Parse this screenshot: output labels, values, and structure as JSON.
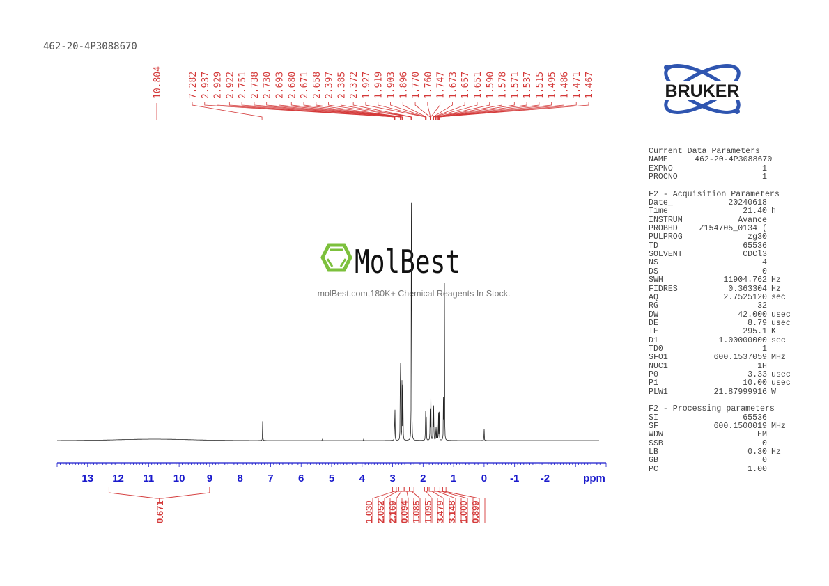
{
  "sample_title": "462-20-4P3088670",
  "logos": {
    "bruker": "BRUKER",
    "molbest": "MolBest",
    "molbest_tagline": "molBest.com,180K+ Chemical Reagents In Stock."
  },
  "colors": {
    "peak_labels": "#d43a3a",
    "axis_labels": "#1a1acc",
    "spectrum": "#222222",
    "bruker_blue": "#2f55b0",
    "molbest_green": "#7cc03c"
  },
  "parameters": {
    "current": {
      "heading": "Current Data Parameters",
      "rows": [
        [
          "NAME",
          "462-20-4P3088670",
          ""
        ],
        [
          "EXPNO",
          "1",
          ""
        ],
        [
          "PROCNO",
          "1",
          ""
        ]
      ]
    },
    "acquisition": {
      "heading": "F2 - Acquisition Parameters",
      "rows": [
        [
          "Date_",
          "20240618",
          ""
        ],
        [
          "Time",
          "21.40",
          "h"
        ],
        [
          "INSTRUM",
          "Avance",
          ""
        ],
        [
          "PROBHD",
          "Z154705_0134 (",
          ""
        ],
        [
          "PULPROG",
          "zg30",
          ""
        ],
        [
          "TD",
          "65536",
          ""
        ],
        [
          "SOLVENT",
          "CDCl3",
          ""
        ],
        [
          "NS",
          "4",
          ""
        ],
        [
          "DS",
          "0",
          ""
        ],
        [
          "SWH",
          "11904.762",
          "Hz"
        ],
        [
          "FIDRES",
          "0.363304",
          "Hz"
        ],
        [
          "AQ",
          "2.7525120",
          "sec"
        ],
        [
          "RG",
          "32",
          ""
        ],
        [
          "DW",
          "42.000",
          "usec"
        ],
        [
          "DE",
          "8.79",
          "usec"
        ],
        [
          "TE",
          "295.1",
          "K"
        ],
        [
          "D1",
          "1.00000000",
          "sec"
        ],
        [
          "TD0",
          "1",
          ""
        ],
        [
          "SFO1",
          "600.1537059",
          "MHz"
        ],
        [
          "NUC1",
          "1H",
          ""
        ],
        [
          "P0",
          "3.33",
          "usec"
        ],
        [
          "P1",
          "10.00",
          "usec"
        ],
        [
          "PLW1",
          "21.87999916",
          "W"
        ]
      ]
    },
    "processing": {
      "heading": "F2 - Processing parameters",
      "rows": [
        [
          "SI",
          "65536",
          ""
        ],
        [
          "SF",
          "600.1500019",
          "MHz"
        ],
        [
          "WDW",
          "EM",
          ""
        ],
        [
          "SSB",
          "0",
          ""
        ],
        [
          "LB",
          "0.30",
          "Hz"
        ],
        [
          "GB",
          "0",
          ""
        ],
        [
          "PC",
          "1.00",
          ""
        ]
      ]
    }
  },
  "chart_data": {
    "type": "line",
    "xlabel": "ppm",
    "xlim": [
      14,
      -4
    ],
    "x_reversed": true,
    "grid": false,
    "xticks": [
      "13",
      "12",
      "11",
      "10",
      "9",
      "8",
      "7",
      "6",
      "5",
      "4",
      "3",
      "2",
      "1",
      "0",
      "-1",
      "-2"
    ],
    "peak_labels": [
      "10.804",
      "7.282",
      "2.937",
      "2.929",
      "2.922",
      "2.751",
      "2.738",
      "2.730",
      "2.693",
      "2.680",
      "2.671",
      "2.658",
      "2.397",
      "2.385",
      "2.372",
      "1.927",
      "1.919",
      "1.903",
      "1.896",
      "1.770",
      "1.760",
      "1.747",
      "1.673",
      "1.657",
      "1.651",
      "1.590",
      "1.578",
      "1.571",
      "1.537",
      "1.515",
      "1.495",
      "1.486",
      "1.471",
      "1.467"
    ],
    "spectrum_peaks": [
      {
        "ppm": 7.26,
        "intensity": 0.094
      },
      {
        "ppm": 5.3,
        "intensity": 0.012
      },
      {
        "ppm": 3.95,
        "intensity": 0.006
      },
      {
        "ppm": 2.937,
        "intensity": 0.12
      },
      {
        "ppm": 2.922,
        "intensity": 0.13
      },
      {
        "ppm": 2.751,
        "intensity": 0.22
      },
      {
        "ppm": 2.738,
        "intensity": 0.32
      },
      {
        "ppm": 2.693,
        "intensity": 0.25
      },
      {
        "ppm": 2.671,
        "intensity": 0.23
      },
      {
        "ppm": 2.658,
        "intensity": 0.16
      },
      {
        "ppm": 2.385,
        "intensity": 1.0
      },
      {
        "ppm": 2.372,
        "intensity": 0.55
      },
      {
        "ppm": 1.919,
        "intensity": 0.18
      },
      {
        "ppm": 1.896,
        "intensity": 0.14
      },
      {
        "ppm": 1.77,
        "intensity": 0.17
      },
      {
        "ppm": 1.747,
        "intensity": 0.27
      },
      {
        "ppm": 1.673,
        "intensity": 0.22
      },
      {
        "ppm": 1.651,
        "intensity": 0.2
      },
      {
        "ppm": 1.578,
        "intensity": 0.12
      },
      {
        "ppm": 1.537,
        "intensity": 0.11
      },
      {
        "ppm": 1.495,
        "intensity": 0.13
      },
      {
        "ppm": 1.471,
        "intensity": 0.12
      },
      {
        "ppm": 1.33,
        "intensity": 0.34
      },
      {
        "ppm": 1.3,
        "intensity": 0.69
      },
      {
        "ppm": 0.0,
        "intensity": 0.07
      }
    ],
    "integrals": [
      {
        "from": 12.3,
        "to": 9.0,
        "value": "0.671"
      },
      {
        "from": 3.0,
        "to": 2.88,
        "value": "1.030"
      },
      {
        "from": 2.88,
        "to": 2.8,
        "value": "2.052"
      },
      {
        "from": 2.8,
        "to": 2.62,
        "value": "2.169"
      },
      {
        "from": 2.62,
        "to": 2.45,
        "value": "0.094"
      },
      {
        "from": 2.45,
        "to": 2.3,
        "value": "1.085"
      },
      {
        "from": 1.95,
        "to": 1.86,
        "value": "1.095"
      },
      {
        "from": 1.8,
        "to": 1.62,
        "value": "3.479"
      },
      {
        "from": 1.62,
        "to": 1.45,
        "value": "3.148"
      },
      {
        "from": 1.45,
        "to": 1.36,
        "value": "1.000"
      },
      {
        "from": 1.36,
        "to": 1.25,
        "value": "0.899"
      }
    ]
  }
}
